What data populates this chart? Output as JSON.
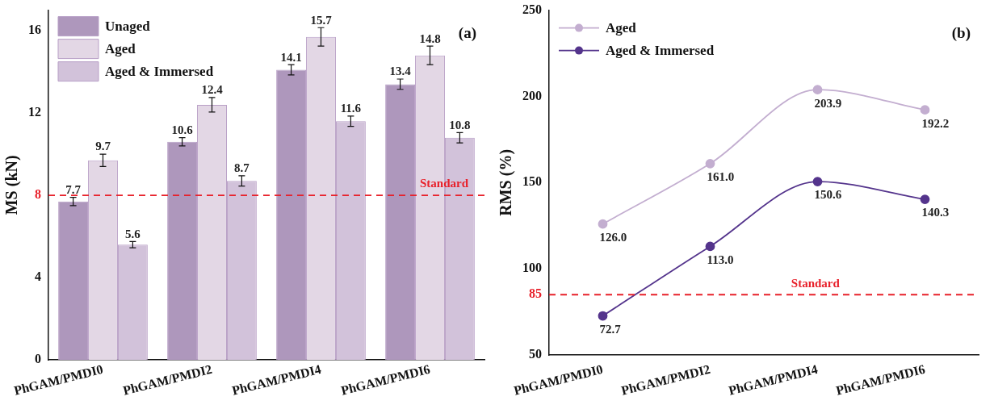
{
  "chart_data": [
    {
      "type": "bar",
      "ylabel": "MS (kN)",
      "categories": [
        "PhGAM/PMDI0",
        "PhGAM/PMDI2",
        "PhGAM/PMDI4",
        "PhGAM/PMDI6"
      ],
      "series": [
        {
          "name": "Unaged",
          "color": "#ae97bc",
          "values": [
            7.7,
            10.6,
            14.1,
            13.4
          ],
          "errors": [
            0.2,
            0.2,
            0.25,
            0.25
          ]
        },
        {
          "name": "Aged",
          "color": "#e3d7e5",
          "values": [
            9.7,
            12.4,
            15.7,
            14.8
          ],
          "errors": [
            0.3,
            0.35,
            0.45,
            0.45
          ]
        },
        {
          "name": "Aged & Immersed",
          "color": "#d2c2da",
          "values": [
            5.6,
            8.7,
            11.6,
            10.8
          ],
          "errors": [
            0.15,
            0.25,
            0.25,
            0.25
          ]
        }
      ],
      "ylim": [
        0,
        17
      ],
      "yticks": [
        0,
        4,
        8,
        12,
        16
      ],
      "data_labels": true,
      "legend": "top left",
      "grid": false,
      "ref_lines": [
        {
          "axis": "y",
          "value": 8,
          "label": "Standard",
          "color": "#e8202a",
          "line_style": "dashed"
        }
      ],
      "annotations": [
        "(a)"
      ]
    },
    {
      "type": "line",
      "ylabel": "RMS (%)",
      "categories": [
        "PhGAM/PMDI0",
        "PhGAM/PMDI2",
        "PhGAM/PMDI4",
        "PhGAM/PMDI6"
      ],
      "series": [
        {
          "name": "Aged",
          "color": "#c3aed0",
          "values": [
            126.0,
            161.0,
            203.9,
            192.2
          ],
          "value_labels": [
            "126.0",
            "161.0",
            "203.9",
            "192.2"
          ]
        },
        {
          "name": "Aged & Immersed",
          "color": "#54348c",
          "values": [
            72.7,
            113.0,
            150.6,
            140.3
          ],
          "value_labels": [
            "72.7",
            "113.0",
            "150.6",
            "140.3"
          ]
        }
      ],
      "ylim": [
        50,
        250
      ],
      "yticks": [
        50,
        85,
        100,
        150,
        200,
        250
      ],
      "legend": "top left",
      "grid": false,
      "marker": "circle",
      "line_style": "solid",
      "ref_lines": [
        {
          "axis": "y",
          "value": 85,
          "label": "Standard",
          "color": "#e8202a",
          "line_style": "dashed"
        }
      ],
      "annotations": [
        "(b)"
      ]
    }
  ]
}
